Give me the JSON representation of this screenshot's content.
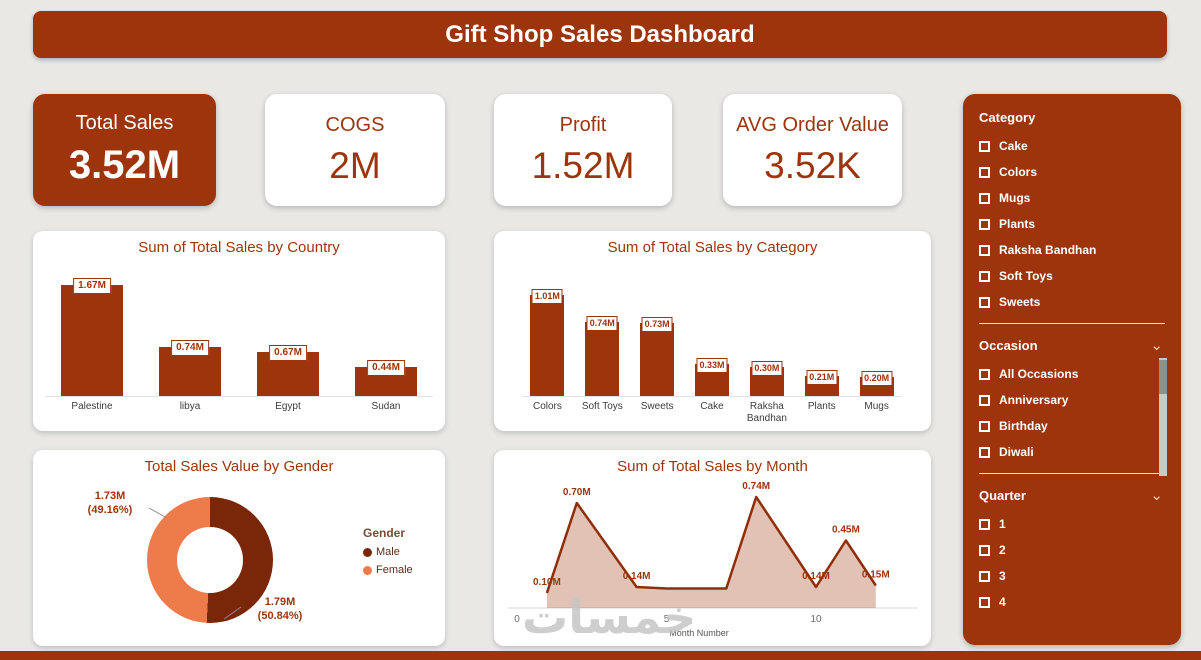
{
  "colors": {
    "accent": "#9e340b",
    "male": "#7a2608",
    "female": "#ee7c4b",
    "line": "#8f2e08",
    "area_fill": "rgba(158,52,11,0.30)"
  },
  "header": {
    "title": "Gift Shop Sales Dashboard"
  },
  "kpis": [
    {
      "label": "Total Sales",
      "value": "3.52M",
      "highlighted": true
    },
    {
      "label": "COGS",
      "value": "2M",
      "highlighted": false
    },
    {
      "label": "Profit",
      "value": "1.52M",
      "highlighted": false
    },
    {
      "label": "AVG Order Value",
      "value": "3.52K",
      "highlighted": false
    }
  ],
  "filters": {
    "sections": [
      {
        "title": "Category",
        "has_chevron": false,
        "has_scrollbar": false,
        "items": [
          "Cake",
          "Colors",
          "Mugs",
          "Plants",
          "Raksha Bandhan",
          "Soft Toys",
          "Sweets"
        ]
      },
      {
        "title": "Occasion",
        "has_chevron": true,
        "has_scrollbar": true,
        "items": [
          "All Occasions",
          "Anniversary",
          "Birthday",
          "Diwali"
        ]
      },
      {
        "title": "Quarter",
        "has_chevron": true,
        "has_scrollbar": false,
        "items": [
          "1",
          "2",
          "3",
          "4"
        ]
      }
    ]
  },
  "chart_data": [
    {
      "type": "bar",
      "title": "Sum of Total Sales by Country",
      "categories": [
        "Palestine",
        "libya",
        "Egypt",
        "Sudan"
      ],
      "values": [
        1.67,
        0.74,
        0.67,
        0.44
      ],
      "labels": [
        "1.67M",
        "0.74M",
        "0.67M",
        "0.44M"
      ],
      "unit": "M",
      "ylim": [
        0,
        1.8
      ]
    },
    {
      "type": "bar",
      "title": "Sum of Total Sales by Category",
      "categories": [
        "Colors",
        "Soft Toys",
        "Sweets",
        "Cake",
        "Raksha Bandhan",
        "Plants",
        "Mugs"
      ],
      "values": [
        1.01,
        0.74,
        0.73,
        0.33,
        0.3,
        0.21,
        0.2
      ],
      "labels": [
        "1.01M",
        "0.74M",
        "0.73M",
        "0.33M",
        "0.30M",
        "0.21M",
        "0.20M"
      ],
      "unit": "M",
      "ylim": [
        0,
        1.1
      ]
    },
    {
      "type": "pie",
      "title": "Total Sales Value by Gender",
      "legend_title": "Gender",
      "slices": [
        {
          "name": "Male",
          "value": 1.79,
          "value_label": "1.79M",
          "pct_label": "(50.84%)",
          "pct": 50.84
        },
        {
          "name": "Female",
          "value": 1.73,
          "value_label": "1.73M",
          "pct_label": "(49.16%)",
          "pct": 49.16
        }
      ]
    },
    {
      "type": "area",
      "title": "Sum of Total Sales by Month",
      "xlabel": "Month Number",
      "x": [
        1,
        2,
        4,
        5,
        7,
        8,
        10,
        11,
        12
      ],
      "values": [
        0.1,
        0.7,
        0.14,
        0.13,
        0.13,
        0.74,
        0.14,
        0.45,
        0.15
      ],
      "labels": [
        "0.10M",
        "0.70M",
        "0.14M",
        "",
        "",
        "0.74M",
        "0.14M",
        "0.45M",
        "0.15M"
      ],
      "xticks": [
        0,
        5,
        10
      ],
      "ylim": [
        0,
        0.8
      ]
    }
  ],
  "watermark": "خمسات"
}
